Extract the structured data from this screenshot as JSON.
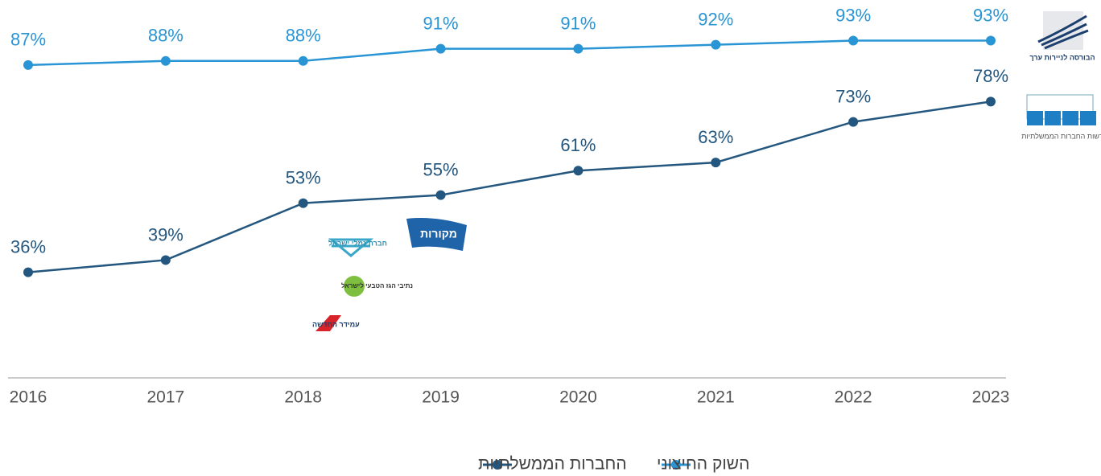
{
  "chart_data": {
    "type": "line",
    "x": [
      "2016",
      "2017",
      "2018",
      "2019",
      "2020",
      "2021",
      "2022",
      "2023"
    ],
    "ylim": [
      10,
      103
    ],
    "series": [
      {
        "name": "השוק החיצוני",
        "color": "#2a95d5",
        "values": [
          87,
          88,
          88,
          91,
          91,
          92,
          93,
          93
        ],
        "value_labels": [
          "87%",
          "88%",
          "88%",
          "91%",
          "91%",
          "92%",
          "93%",
          "93%"
        ]
      },
      {
        "name": "החברות הממשלתיות",
        "color": "#24577f",
        "values": [
          36,
          39,
          53,
          55,
          61,
          63,
          73,
          78
        ],
        "value_labels": [
          "36%",
          "39%",
          "53%",
          "55%",
          "61%",
          "63%",
          "73%",
          "78%"
        ]
      }
    ]
  },
  "logos": [
    "הבורסה לניירות ערך",
    "רשות החברות הממשלתיות",
    "חברת נמלי ישראל",
    "מקורות",
    "נתיבי הגז הטבעי לישראל",
    "עמידר החדשה"
  ]
}
